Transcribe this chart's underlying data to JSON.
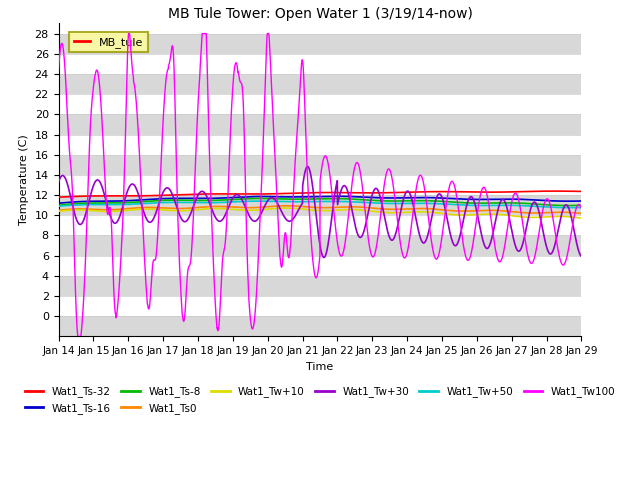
{
  "title": "MB Tule Tower: Open Water 1 (3/19/14-now)",
  "xlabel": "Time",
  "ylabel": "Temperature (C)",
  "ylim": [
    -2,
    29
  ],
  "yticks": [
    0,
    2,
    4,
    6,
    8,
    10,
    12,
    14,
    16,
    18,
    20,
    22,
    24,
    26,
    28
  ],
  "n_days": 15,
  "xtick_labels": [
    "Jan 14",
    "Jan 15",
    "Jan 16",
    "Jan 17",
    "Jan 18",
    "Jan 19",
    "Jan 20",
    "Jan 21",
    "Jan 22",
    "Jan 23",
    "Jan 24",
    "Jan 25",
    "Jan 26",
    "Jan 27",
    "Jan 28",
    "Jan 29"
  ],
  "legend_label": "MB_tule",
  "series_colors": {
    "Wat1_Ts-32": "#ff0000",
    "Wat1_Ts-16": "#0000cc",
    "Wat1_Ts-8": "#00bb00",
    "Wat1_Ts0": "#ff8800",
    "Wat1_Tw+10": "#dddd00",
    "Wat1_Tw+30": "#9900cc",
    "Wat1_Tw+50": "#00cccc",
    "Wat1_Tw100": "#ff00ff"
  },
  "background_color": "#ffffff",
  "plot_bg_color": "#e0e0e0",
  "stripe_light": "#e8e8e8",
  "stripe_dark": "#d0d0d0"
}
